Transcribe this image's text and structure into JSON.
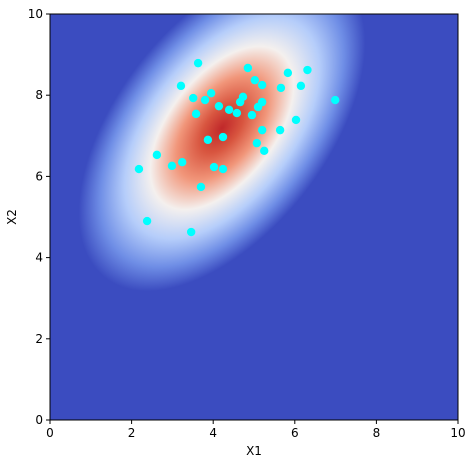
{
  "chart_data": {
    "type": "scatter",
    "x_label": "X1",
    "y_label": "X2",
    "xlim": [
      0,
      10
    ],
    "ylim": [
      0,
      10
    ],
    "xticks": [
      0,
      2,
      4,
      6,
      8,
      10
    ],
    "yticks": [
      0,
      2,
      4,
      6,
      8,
      10
    ],
    "color": "#00ffff",
    "x": [
      3.63,
      4.85,
      5.83,
      6.31,
      5.02,
      3.21,
      5.2,
      6.15,
      5.66,
      3.95,
      3.51,
      3.8,
      4.73,
      4.66,
      6.99,
      4.14,
      5.2,
      5.1,
      4.39,
      4.58,
      3.58,
      4.95,
      6.03,
      5.2,
      5.64,
      4.24,
      3.87,
      5.07,
      5.25,
      2.62,
      3.24,
      2.99,
      2.18,
      4.02,
      4.24,
      3.7,
      2.38,
      3.46
    ],
    "values": [
      8.79,
      8.67,
      8.55,
      8.62,
      8.37,
      8.23,
      8.25,
      8.23,
      8.18,
      8.05,
      7.93,
      7.88,
      7.96,
      7.83,
      7.88,
      7.73,
      7.83,
      7.71,
      7.64,
      7.56,
      7.54,
      7.51,
      7.39,
      7.14,
      7.14,
      6.97,
      6.9,
      6.82,
      6.63,
      6.53,
      6.35,
      6.26,
      6.18,
      6.23,
      6.18,
      5.74,
      4.9,
      4.63
    ]
  }
}
